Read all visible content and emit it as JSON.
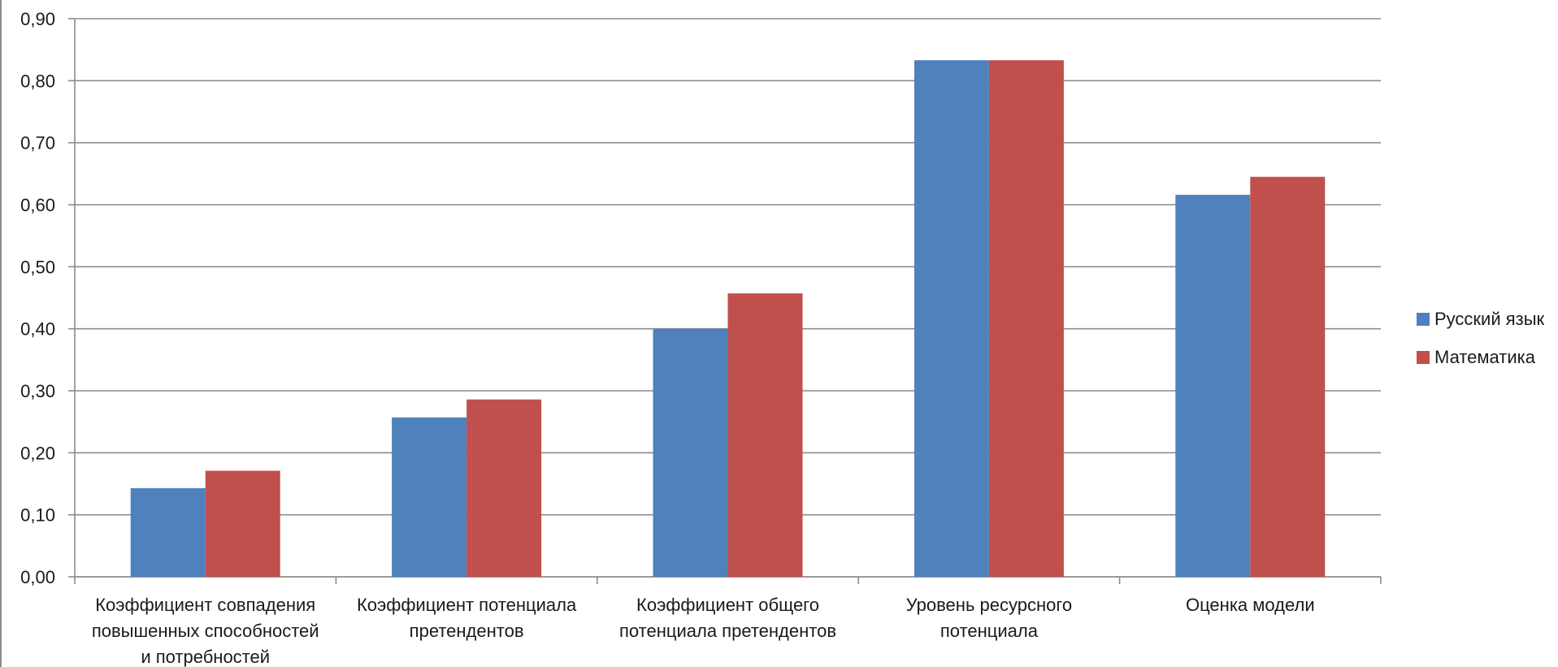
{
  "chart_data": {
    "type": "bar",
    "title": "",
    "xlabel": "",
    "ylabel": "",
    "ylim": [
      0,
      0.9
    ],
    "y_ticks": [
      "0,00",
      "0,10",
      "0,20",
      "0,30",
      "0,40",
      "0,50",
      "0,60",
      "0,70",
      "0,80",
      "0,90"
    ],
    "grid": true,
    "legend_position": "right",
    "categories": [
      [
        "Коэффициент совпадения",
        "повышенных способностей",
        "и потребностей"
      ],
      [
        "Коэффициент потенциала",
        "претендентов"
      ],
      [
        "Коэффициент общего",
        "потенциала претендентов"
      ],
      [
        "Уровень ресурсного",
        "потенциала"
      ],
      [
        "Оценка модели"
      ]
    ],
    "series": [
      {
        "name": "Русский язык",
        "color": "#4f81bd",
        "values": [
          0.143,
          0.257,
          0.4,
          0.833,
          0.616
        ]
      },
      {
        "name": "Математика",
        "color": "#c0504d",
        "values": [
          0.171,
          0.286,
          0.457,
          0.833,
          0.645
        ]
      }
    ]
  }
}
